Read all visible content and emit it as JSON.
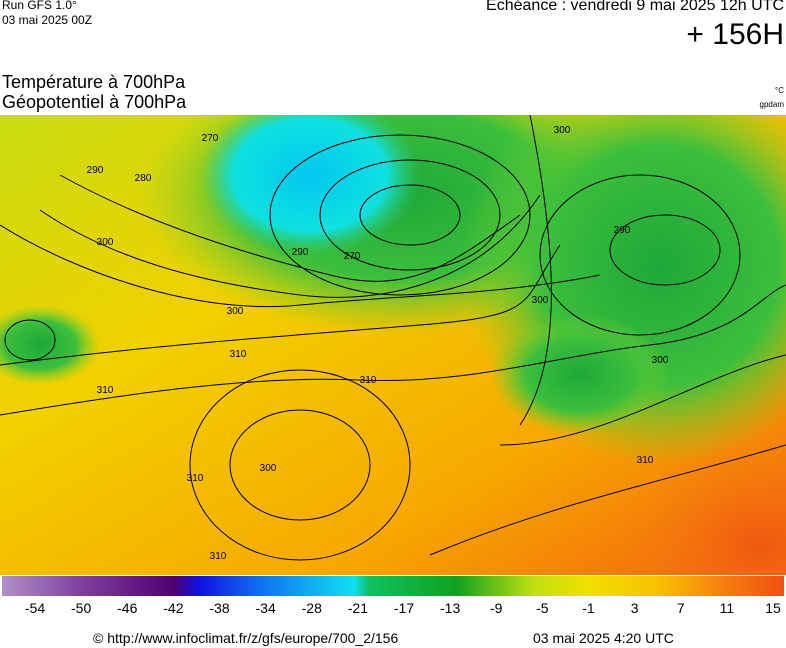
{
  "header": {
    "run": "Run GFS 1.0°",
    "run_date": "03 mai 2025 00Z",
    "echeance": "Echéance : vendredi 9 mai 2025 12h UTC",
    "lead": "+ 156H",
    "title_1": "Température à 700hPa",
    "title_2": "Géopotentiel à 700hPa",
    "unit_temp": "°C",
    "unit_geo": "gpdam"
  },
  "contour_labels": [
    "290",
    "280",
    "270",
    "300",
    "300",
    "310",
    "310",
    "310",
    "300",
    "310",
    "310",
    "300",
    "300",
    "300",
    "310",
    "270",
    "290",
    "290"
  ],
  "colorbar": {
    "labels": [
      "-54",
      "-50",
      "-46",
      "-42",
      "-38",
      "-34",
      "-28",
      "-21",
      "-17",
      "-13",
      "-9",
      "-5",
      "-1",
      "3",
      "7",
      "11",
      "15"
    ]
  },
  "footer": {
    "url": "© http://www.infoclimat.fr/z/gfs/europe/700_2/156",
    "timestamp": "03 mai 2025  4:20 UTC"
  }
}
